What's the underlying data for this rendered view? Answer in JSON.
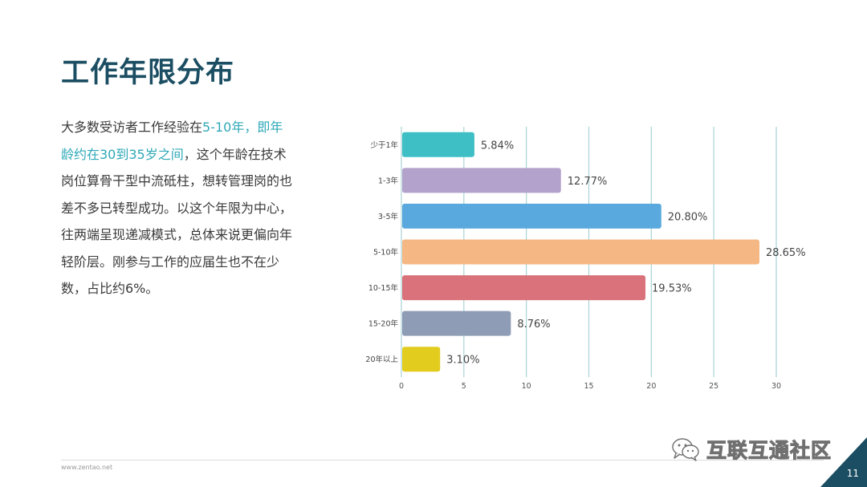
{
  "page": {
    "title": "工作年限分布",
    "description": {
      "p1": "大多数受访者工作经验在",
      "h1": "5-10年，即年龄约在30到35岁之间",
      "p2": "，这个年龄在技术岗位算骨干型中流砥柱，想转管理岗的也差不多已转型成功。以这个年限为中心，往两端呈现递减模式，总体来说更偏向年轻阶层。刚参与工作的应届生也不在少数，占比约6%。"
    },
    "footer_url": "www.zentao.net",
    "page_number": "11",
    "watermark": "互联互通社区",
    "watermark_icon": "wechat-icon",
    "accent_color": "#1b4e62"
  },
  "chart_data": {
    "type": "bar",
    "orientation": "horizontal",
    "categories": [
      "少于1年",
      "1-3年",
      "3-5年",
      "5-10年",
      "10-15年",
      "15-20年",
      "20年以上"
    ],
    "values": [
      5.84,
      12.77,
      20.8,
      28.65,
      19.53,
      8.76,
      3.1
    ],
    "data_labels": [
      "5.84%",
      "12.77%",
      "20.80%",
      "28.65%",
      "19.53%",
      "8.76%",
      "3.10%"
    ],
    "colors": [
      "#3dbfc5",
      "#b3a2cc",
      "#5aa9de",
      "#f5b783",
      "#d9727a",
      "#8e9cb5",
      "#e2cc1e"
    ],
    "xlim": [
      0,
      30
    ],
    "xticks": [
      "0",
      "5",
      "10",
      "15",
      "20",
      "25",
      "30"
    ],
    "xtick_values": [
      0,
      5,
      10,
      15,
      20,
      25,
      30
    ],
    "grid": true,
    "gridline_color": "#a9d3d4",
    "title": "",
    "xlabel": "",
    "ylabel": ""
  }
}
